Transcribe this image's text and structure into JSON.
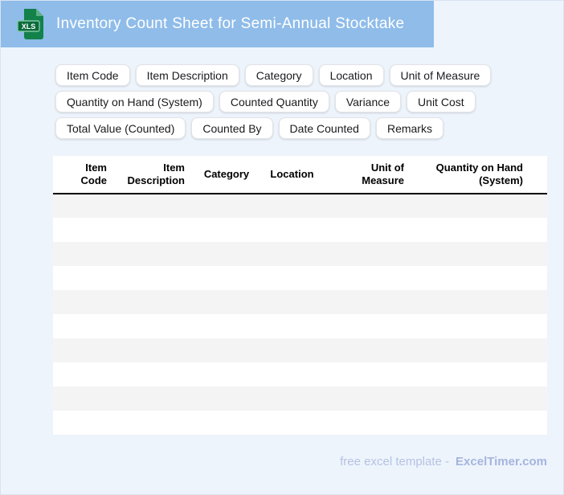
{
  "header": {
    "title": "Inventory Count Sheet for Semi-Annual Stocktake",
    "file_icon_label": "XLS"
  },
  "chips": {
    "rows": [
      [
        "Item Code",
        "Item Description",
        "Category",
        "Location",
        "Unit of Measure"
      ],
      [
        "Quantity on Hand (System)",
        "Counted Quantity",
        "Variance",
        "Unit Cost"
      ],
      [
        "Total Value (Counted)",
        "Counted By",
        "Date Counted",
        "Remarks"
      ]
    ]
  },
  "table": {
    "columns": [
      {
        "label": "Item\nCode"
      },
      {
        "label": "Item\nDescription"
      },
      {
        "label": "Category"
      },
      {
        "label": "Location"
      },
      {
        "label": "Unit of\nMeasure"
      },
      {
        "label": "Quantity on Hand\n(System)"
      }
    ],
    "rows": [
      [
        "",
        "",
        "",
        "",
        "",
        ""
      ],
      [
        "",
        "",
        "",
        "",
        "",
        ""
      ],
      [
        "",
        "",
        "",
        "",
        "",
        ""
      ],
      [
        "",
        "",
        "",
        "",
        "",
        ""
      ],
      [
        "",
        "",
        "",
        "",
        "",
        ""
      ],
      [
        "",
        "",
        "",
        "",
        "",
        ""
      ],
      [
        "",
        "",
        "",
        "",
        "",
        ""
      ],
      [
        "",
        "",
        "",
        "",
        "",
        ""
      ],
      [
        "",
        "",
        "",
        "",
        "",
        ""
      ],
      [
        "",
        "",
        "",
        "",
        "",
        ""
      ]
    ]
  },
  "footer": {
    "text": "free excel template -",
    "brand": "ExcelTimer.com"
  },
  "colors": {
    "banner_blue": "#8fbce9",
    "page_background": "#edf4fc",
    "row_stripe": "#f4f4f5",
    "icon_green": "#12814a",
    "icon_band_green": "#0b6b3c",
    "footer_text": "#b6c2e3",
    "footer_brand": "#a6b4de"
  }
}
